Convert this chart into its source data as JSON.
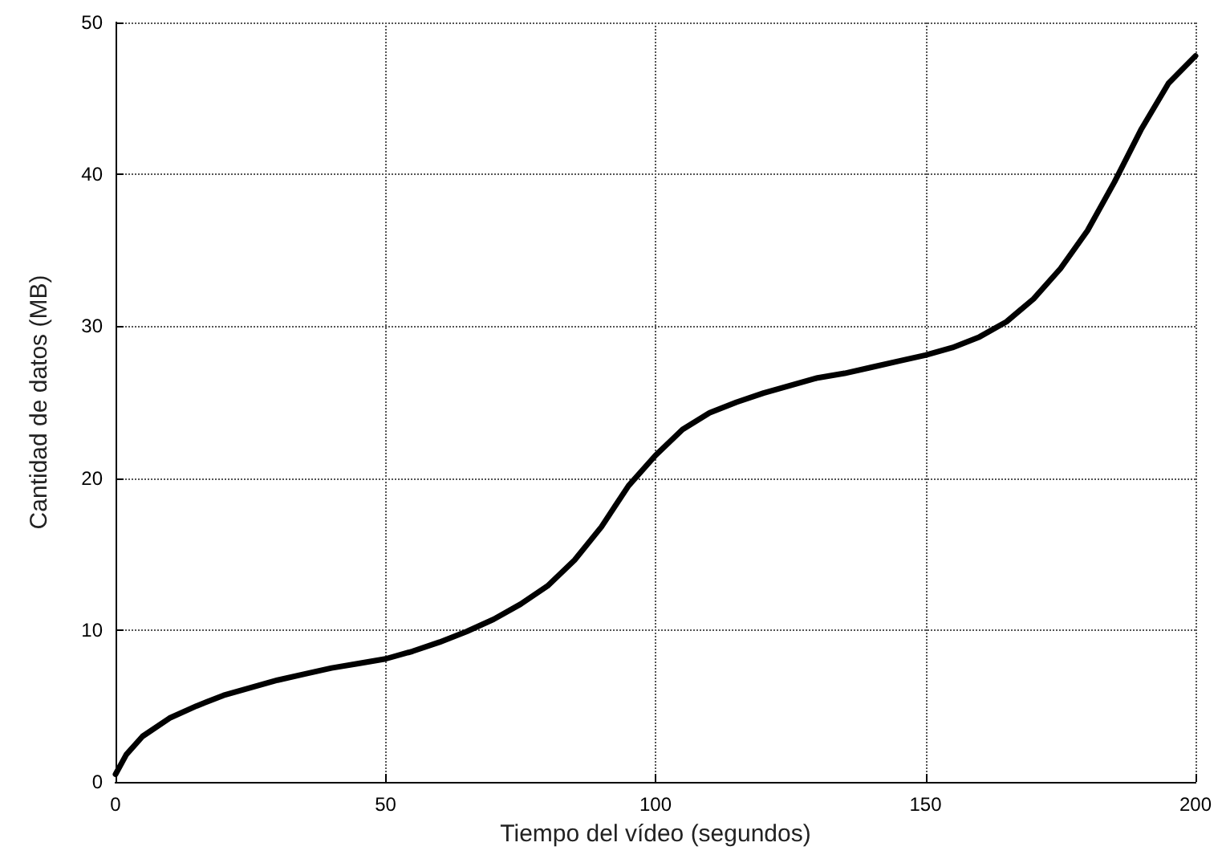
{
  "chart_data": {
    "type": "line",
    "xlabel": "Tiempo del vídeo (segundos)",
    "ylabel": "Cantidad de datos (MB)",
    "x": [
      0,
      2,
      5,
      10,
      15,
      20,
      25,
      30,
      35,
      40,
      45,
      50,
      55,
      60,
      65,
      70,
      75,
      80,
      85,
      90,
      95,
      100,
      105,
      110,
      115,
      120,
      125,
      130,
      135,
      140,
      145,
      150,
      155,
      160,
      165,
      170,
      175,
      180,
      185,
      190,
      195,
      200
    ],
    "series": [
      {
        "color": "#000000",
        "values": [
          0.5,
          1.8,
          3,
          4.2,
          5,
          5.7,
          6.2,
          6.7,
          7.1,
          7.5,
          7.8,
          8.1,
          8.6,
          9.2,
          9.9,
          10.7,
          11.7,
          12.9,
          14.6,
          16.8,
          19.5,
          21.5,
          23.2,
          24.3,
          25,
          25.6,
          26.1,
          26.6,
          26.9,
          27.3,
          27.7,
          28.1,
          28.6,
          29.3,
          30.3,
          31.8,
          33.8,
          36.3,
          39.5,
          43,
          46,
          47.8
        ]
      }
    ],
    "xlim": [
      0,
      200
    ],
    "xticks": [
      0,
      50,
      100,
      150,
      200
    ],
    "ylim": [
      0,
      50
    ],
    "yticks": [
      0,
      10,
      20,
      30,
      40,
      50
    ],
    "grid": true,
    "marker": "none",
    "line_style": "solid"
  }
}
